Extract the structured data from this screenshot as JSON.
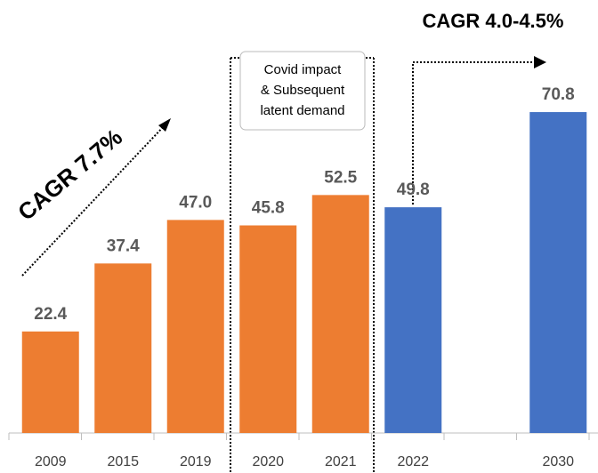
{
  "chart_data": {
    "type": "bar",
    "categories": [
      "2009",
      "2015",
      "2019",
      "2020",
      "2021",
      "2022",
      null,
      "2030"
    ],
    "values": [
      22.4,
      37.4,
      47.0,
      45.8,
      52.5,
      49.8,
      null,
      70.8
    ],
    "value_labels": [
      "22.4",
      "37.4",
      "47.0",
      "45.8",
      "52.5",
      "49.8",
      null,
      "70.8"
    ],
    "colors": [
      "#ed7d31",
      "#ed7d31",
      "#ed7d31",
      "#ed7d31",
      "#ed7d31",
      "#4472c4",
      null,
      "#4472c4"
    ],
    "ylim": [
      0,
      76.5
    ],
    "annotations": [
      "CAGR 7.7%",
      "CAGR 4.0-4.5%"
    ],
    "covid_note": [
      "Covid impact",
      "& Subsequent",
      "latent demand"
    ]
  }
}
